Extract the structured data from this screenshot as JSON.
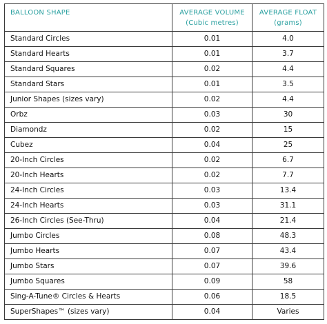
{
  "headers": {
    "shape": "BALLOON SHAPE",
    "volume": "AVERAGE VOLUME",
    "volume_unit": "(Cubic metres)",
    "float": "AVERAGE FLOAT",
    "float_unit": "(grams)"
  },
  "rows": [
    {
      "shape": "Standard Circles",
      "volume": "0.01",
      "float": "4.0"
    },
    {
      "shape": "Standard Hearts",
      "volume": "0.01",
      "float": "3.7"
    },
    {
      "shape": "Standard Squares",
      "volume": "0.02",
      "float": "4.4"
    },
    {
      "shape": "Standard Stars",
      "volume": "0.01",
      "float": "3.5"
    },
    {
      "shape": "Junior Shapes (sizes vary)",
      "volume": "0.02",
      "float": "4.4"
    },
    {
      "shape": "Orbz",
      "volume": "0.03",
      "float": "30"
    },
    {
      "shape": "Diamondz",
      "volume": "0.02",
      "float": "15"
    },
    {
      "shape": "Cubez",
      "volume": "0.04",
      "float": "25"
    },
    {
      "shape": "20-Inch Circles",
      "volume": "0.02",
      "float": "6.7"
    },
    {
      "shape": "20-Inch Hearts",
      "volume": "0.02",
      "float": "7.7"
    },
    {
      "shape": "24-Inch Circles",
      "volume": "0.03",
      "float": "13.4"
    },
    {
      "shape": "24-Inch Hearts",
      "volume": "0.03",
      "float": "31.1"
    },
    {
      "shape": "26-Inch Circles (See-Thru)",
      "volume": "0.04",
      "float": "21.4"
    },
    {
      "shape": "Jumbo Circles",
      "volume": "0.08",
      "float": "48.3"
    },
    {
      "shape": "Jumbo Hearts",
      "volume": "0.07",
      "float": "43.4"
    },
    {
      "shape": "Jumbo Stars",
      "volume": "0.07",
      "float": "39.6"
    },
    {
      "shape": "Jumbo Squares",
      "volume": "0.09",
      "float": "58"
    },
    {
      "shape": "Sing-A-Tune® Circles & Hearts",
      "volume": "0.06",
      "float": "18.5"
    },
    {
      "shape": "SuperShapes™ (sizes vary)",
      "volume": "0.04",
      "float": "Varies"
    }
  ]
}
